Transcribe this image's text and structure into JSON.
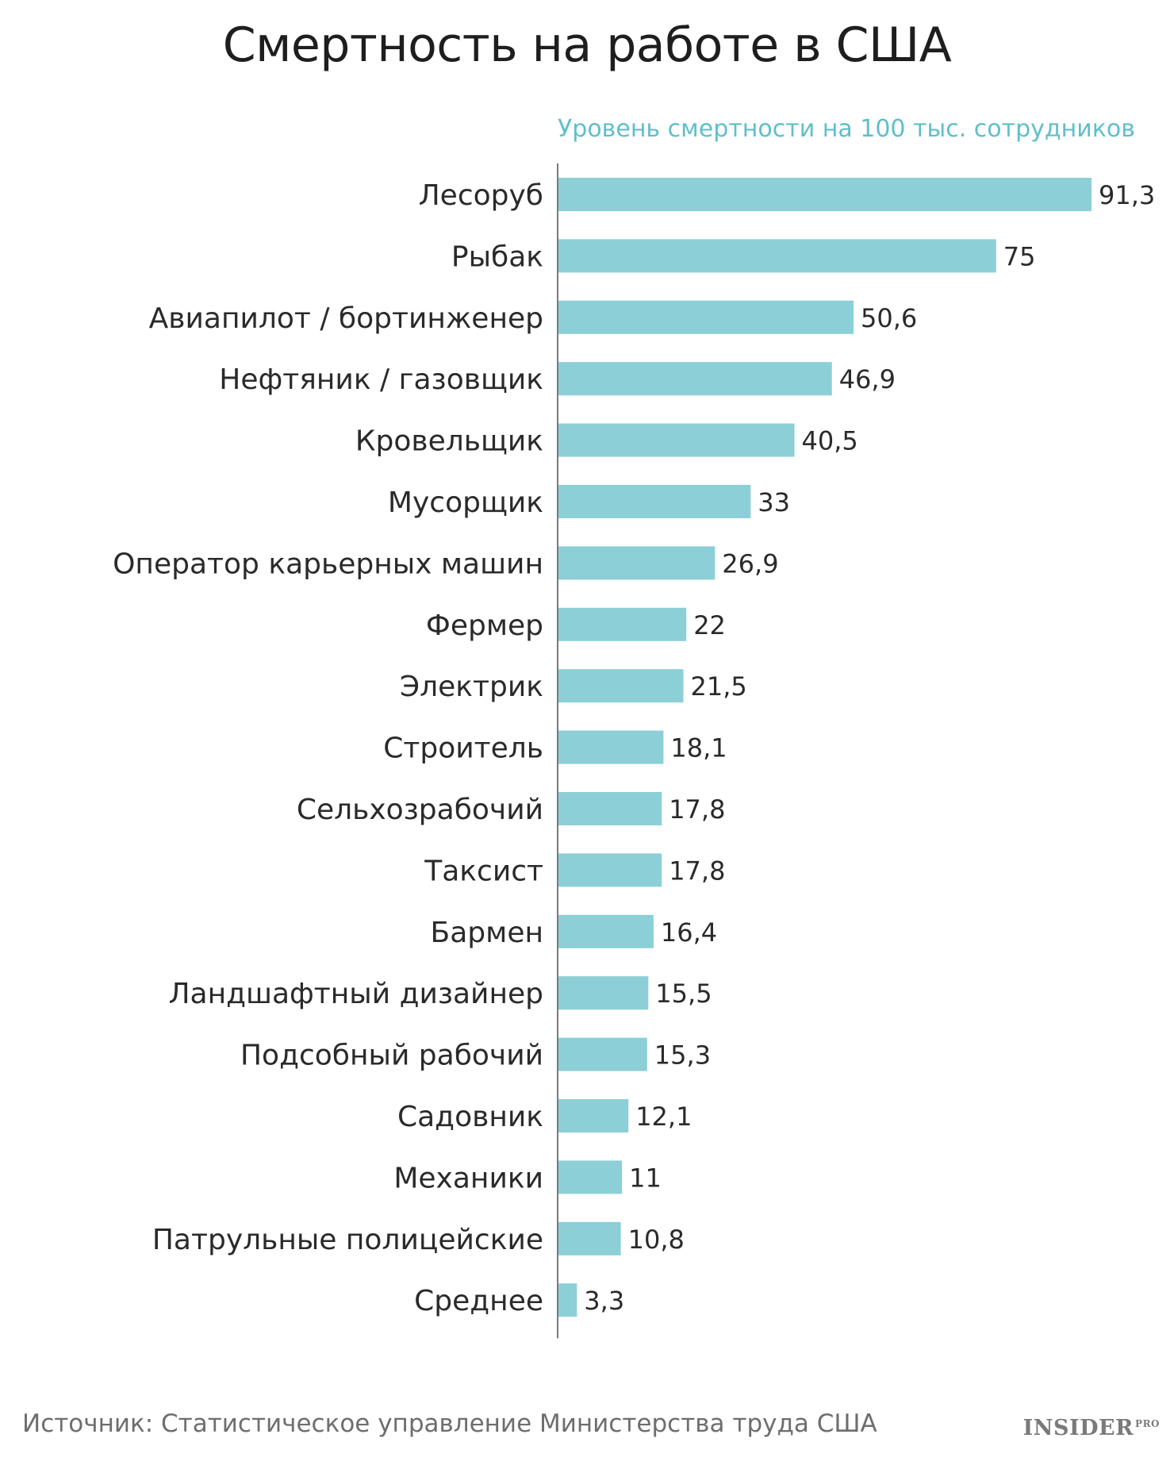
{
  "chart_data": {
    "type": "bar",
    "orientation": "horizontal",
    "title": "Смертность на работе в США",
    "subtitle": "Уровень смертности на 100 тыс. сотрудников",
    "categories": [
      "Лесоруб",
      "Рыбак",
      "Авиапилот / бортинженер",
      "Нефтяник / газовщик",
      "Кровельщик",
      "Мусорщик",
      "Оператор карьерных машин",
      "Фермер",
      "Электрик",
      "Строитель",
      "Сельхозрабочий",
      "Таксист",
      "Бармен",
      "Ландшафтный дизайнер",
      "Подсобный рабочий",
      "Садовник",
      "Механики",
      "Патрульные полицейские",
      "Среднее"
    ],
    "values": [
      91.3,
      75,
      50.6,
      46.9,
      40.5,
      33,
      26.9,
      22,
      21.5,
      18.1,
      17.8,
      17.8,
      16.4,
      15.5,
      15.3,
      12.1,
      11,
      10.8,
      3.3
    ],
    "value_labels": [
      "91,3",
      "75",
      "50,6",
      "46,9",
      "40,5",
      "33",
      "26,9",
      "22",
      "21,5",
      "18,1",
      "17,8",
      "17,8",
      "16,4",
      "15,5",
      "15,3",
      "12,1",
      "11",
      "10,8",
      "3,3"
    ],
    "xlim": [
      0,
      91.3
    ],
    "grid": false,
    "bar_color": "#8ccfd6",
    "axis_color": "#7a7a7a"
  },
  "footer": {
    "source": "Источник: Статистическое управление Министерства труда США",
    "brand": "INSIDER",
    "brand_suffix": "PRO"
  }
}
